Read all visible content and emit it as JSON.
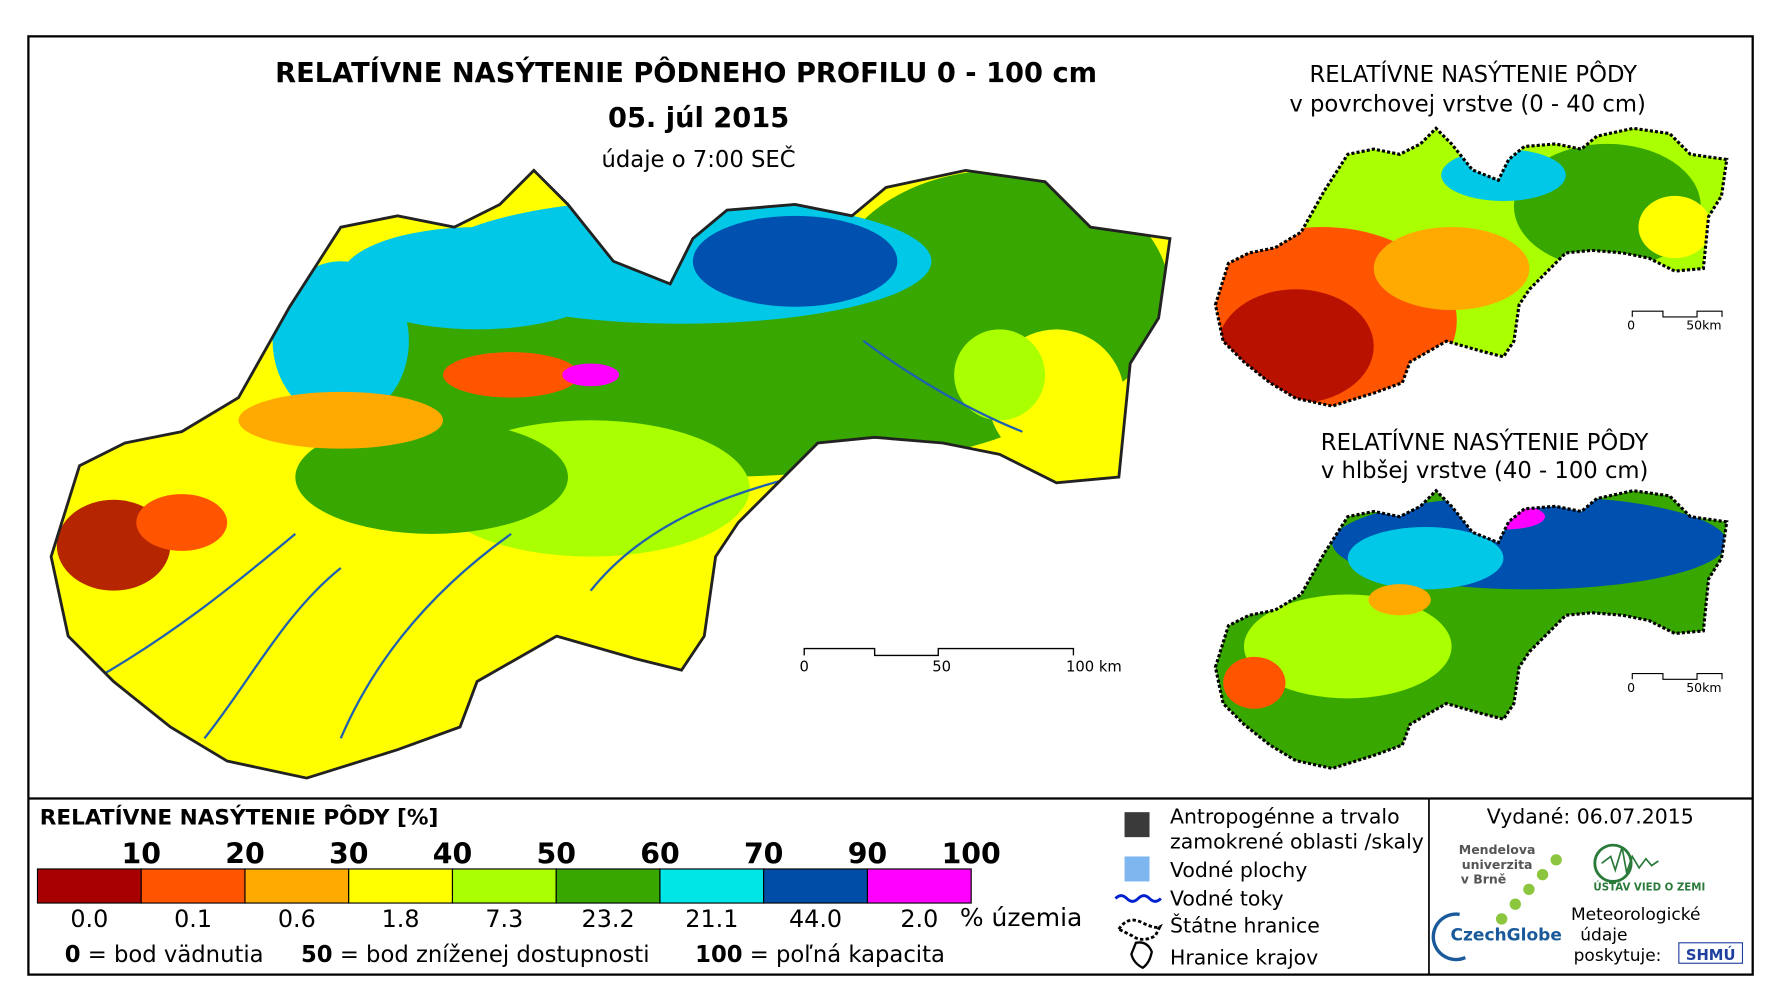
{
  "title": {
    "main": "RELATÍVNE NASÝTENIE PÔDNEHO PROFILU 0 - 100 cm",
    "date": "05. júl 2015",
    "time": "údaje o 7:00 SEČ"
  },
  "main_scale": [
    "0",
    "50",
    "100 km"
  ],
  "inset_top": {
    "title": "RELATÍVNE NASÝTENIE PÔDY",
    "subtitle": "v povrchovej vrstve (0 - 40 cm)",
    "scale": [
      "0",
      "50km"
    ]
  },
  "inset_bottom": {
    "title": "RELATÍVNE NASÝTENIE PÔDY",
    "subtitle": "v hlbšej vrstve (40 - 100 cm)",
    "scale": [
      "0",
      "50km"
    ]
  },
  "legend": {
    "title": "RELATÍVNE NASÝTENIE PÔDY [%]",
    "breaks": [
      "10",
      "20",
      "30",
      "40",
      "50",
      "60",
      "70",
      "90",
      "100"
    ],
    "classes": [
      {
        "color": "#a80000",
        "share": "0.0"
      },
      {
        "color": "#ff5500",
        "share": "0.1"
      },
      {
        "color": "#ffaa00",
        "share": "0.6"
      },
      {
        "color": "#ffff00",
        "share": "1.8"
      },
      {
        "color": "#aaff00",
        "share": "7.3"
      },
      {
        "color": "#38a800",
        "share": "23.2"
      },
      {
        "color": "#00e6e6",
        "share": "21.1"
      },
      {
        "color": "#004da8",
        "share": "44.0"
      },
      {
        "color": "#ff00ff",
        "share": "2.0"
      }
    ],
    "unit": "% územia",
    "notes": [
      {
        "num": "0",
        "text": "= bod vädnutia"
      },
      {
        "num": "50",
        "text": "= bod zníženej dostupnosti"
      },
      {
        "num": "100",
        "text": "= poľná kapacita"
      }
    ]
  },
  "symbols": {
    "anthropogenic": [
      "Antropogénne a trvalo",
      "zamokrené oblasti /skaly"
    ],
    "water_bodies": "Vodné plochy",
    "rivers": "Vodné toky",
    "state_border": "Štátne hranice",
    "regions": "Hranice krajov"
  },
  "issued": "Vydané: 06.07.2015",
  "logos": {
    "mendel": [
      "Mendelova",
      "univerzita",
      "v Brně"
    ],
    "czechglobe": "CzechGlobe",
    "ustav": "ÚSTAV VIED O ZEMI",
    "meteo": [
      "Meteorologické",
      "údaje",
      "poskytuje:"
    ],
    "shmu": "SHMÚ"
  }
}
